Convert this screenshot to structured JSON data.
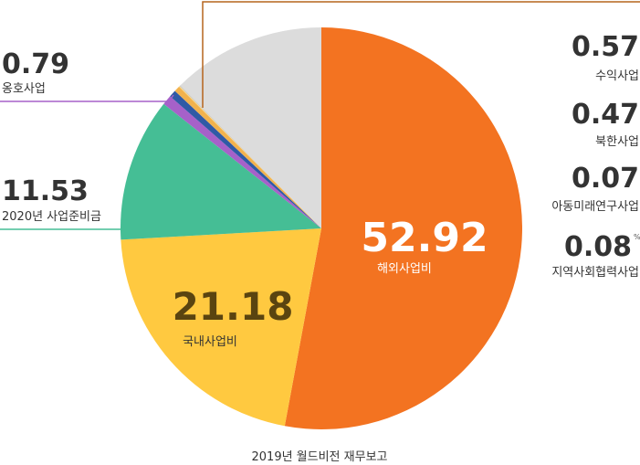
{
  "chart_data": {
    "type": "pie",
    "source": "2019년 월드비전 재무보고",
    "slices": [
      {
        "label": "해외사업비",
        "value": 52.92,
        "color": "#F37321"
      },
      {
        "label": "국내사업비",
        "value": 21.18,
        "color": "#FFC940"
      },
      {
        "label": "2020년 사업준비금",
        "value": 11.53,
        "color": "#45BE95"
      },
      {
        "label": "옹호사업",
        "value": 0.79,
        "color": "#A661C9"
      },
      {
        "label": "수익사업",
        "value": 0.57,
        "color": "#2F5AA6"
      },
      {
        "label": "북한사업",
        "value": 0.47,
        "color": "#F2B24D"
      },
      {
        "label": "아동미래연구사업",
        "value": 0.07,
        "color": "#F7D98C"
      },
      {
        "label": "지역사회협력사업",
        "value": 0.08,
        "color": "#C9C9C9"
      },
      {
        "label": "",
        "value": 12.39,
        "color": "#DCDCDC"
      }
    ],
    "unit_mark": "%"
  }
}
